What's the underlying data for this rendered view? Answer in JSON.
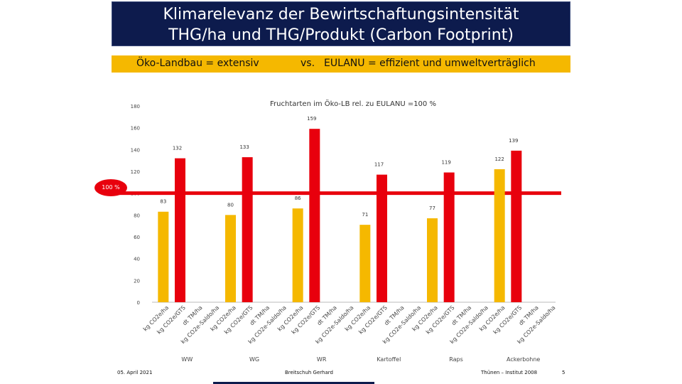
{
  "slide": {
    "title_line1": "Klimarelevanz der Bewirtschaftungsintensität",
    "title_line2": "THG/ha und THG/Produkt (Carbon Footprint)",
    "subtitle_left": "Öko-Landbau = extensiv",
    "subtitle_mid": "vs.",
    "subtitle_right": "EULANU = effizient und umweltverträglich",
    "badge": "100 %",
    "footer_date": "05. April 2021",
    "footer_author": "Breitschuh Gerhard",
    "footer_institute": "Thünen – Institut 2008",
    "page_number": "5"
  },
  "colors": {
    "title_bg": "#0d1b4d",
    "subtitle_bg": "#f5b800",
    "bar_orange": "#f5b800",
    "bar_red": "#e8000d",
    "line_red": "#e8000d"
  },
  "chart_data": {
    "type": "bar",
    "title": "Fruchtarten im Öko-LB rel. zu EULANU =100 %",
    "ylim": [
      0,
      180
    ],
    "yticks": [
      0,
      20,
      40,
      60,
      80,
      100,
      120,
      140,
      160,
      180
    ],
    "reference_line": 100,
    "groups": [
      {
        "name": "WW",
        "bars": [
          {
            "label": "kg CO2e/ha",
            "value": 83,
            "color": "orange"
          },
          {
            "label": "kg CO2e/GTS",
            "value": 132,
            "color": "red"
          },
          {
            "label": "dt TM/ha",
            "value": null
          },
          {
            "label": "kg CO2e-Saldo/ha",
            "value": null
          }
        ]
      },
      {
        "name": "WG",
        "bars": [
          {
            "label": "kg CO2e/ha",
            "value": 80,
            "color": "orange"
          },
          {
            "label": "kg CO2e/GTS",
            "value": 133,
            "color": "red"
          },
          {
            "label": "dt TM/ha",
            "value": null
          },
          {
            "label": "kg CO2e-Saldo/ha",
            "value": null
          }
        ]
      },
      {
        "name": "WR",
        "bars": [
          {
            "label": "kg CO2e/ha",
            "value": 86,
            "color": "orange"
          },
          {
            "label": "kg CO2e/GTS",
            "value": 159,
            "color": "red"
          },
          {
            "label": "dt TM/ha",
            "value": null
          },
          {
            "label": "kg CO2e-Saldo/ha",
            "value": null
          }
        ]
      },
      {
        "name": "Kartoffel",
        "bars": [
          {
            "label": "kg CO2e/ha",
            "value": 71,
            "color": "orange"
          },
          {
            "label": "kg CO2e/GTS",
            "value": 117,
            "color": "red"
          },
          {
            "label": "dt TM/ha",
            "value": null
          },
          {
            "label": "kg CO2e-Saldo/ha",
            "value": null
          }
        ]
      },
      {
        "name": "Raps",
        "bars": [
          {
            "label": "kg CO2e/ha",
            "value": 77,
            "color": "orange"
          },
          {
            "label": "kg CO2e/GTS",
            "value": 119,
            "color": "red"
          },
          {
            "label": "dt TM/ha",
            "value": null
          },
          {
            "label": "kg CO2e-Saldo/ha",
            "value": null
          }
        ]
      },
      {
        "name": "Ackerbohne",
        "bars": [
          {
            "label": "kg CO2e/ha",
            "value": 122,
            "color": "orange"
          },
          {
            "label": "kg CO2e/GTS",
            "value": 139,
            "color": "red"
          },
          {
            "label": "dt TM/ha",
            "value": null
          },
          {
            "label": "kg CO2e-Saldo/ha",
            "value": null
          }
        ]
      }
    ]
  }
}
